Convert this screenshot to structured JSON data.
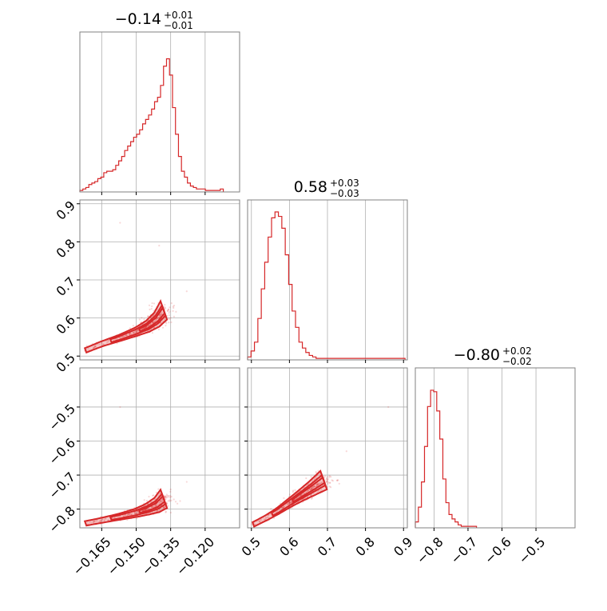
{
  "colors": {
    "series": "#d62728",
    "frame": "#808080",
    "grid": "#b0b0b0"
  },
  "titles": [
    {
      "value": "−0.14",
      "sup": "+0.01",
      "sub": "−0.01"
    },
    {
      "value": "0.58",
      "sup": "+0.03",
      "sub": "−0.03"
    },
    {
      "value": "−0.80",
      "sup": "+0.02",
      "sub": "−0.02"
    }
  ],
  "chart_data": {
    "type": "corner",
    "parameters": 3,
    "ranges": [
      [
        -0.1745,
        -0.105
      ],
      [
        0.49,
        0.91
      ],
      [
        -0.855,
        -0.385
      ]
    ],
    "ticks": [
      {
        "values": [
          -0.165,
          -0.15,
          -0.135,
          -0.12
        ],
        "labels": [
          "−0.165",
          "−0.150",
          "−0.135",
          "−0.120"
        ]
      },
      {
        "values": [
          0.5,
          0.6,
          0.7,
          0.8,
          0.9
        ],
        "labels": [
          "0.5",
          "0.6",
          "0.7",
          "0.8",
          "0.9"
        ]
      },
      {
        "values": [
          -0.8,
          -0.7,
          -0.6,
          -0.5
        ],
        "labels": [
          "−0.8",
          "−0.7",
          "−0.6",
          "−0.5"
        ]
      }
    ],
    "histograms": [
      {
        "bin_start": -0.1745,
        "bin_width": 0.0013,
        "heights": [
          0.01,
          0.02,
          0.03,
          0.05,
          0.06,
          0.07,
          0.09,
          0.1,
          0.13,
          0.14,
          0.14,
          0.15,
          0.18,
          0.21,
          0.24,
          0.28,
          0.31,
          0.34,
          0.37,
          0.39,
          0.42,
          0.46,
          0.49,
          0.52,
          0.56,
          0.61,
          0.64,
          0.72,
          0.85,
          0.9,
          0.79,
          0.57,
          0.39,
          0.24,
          0.14,
          0.1,
          0.06,
          0.04,
          0.03,
          0.02,
          0.02,
          0.02,
          0.01,
          0.01,
          0.01,
          0.01,
          0.01,
          0.02
        ]
      },
      {
        "bin_start": 0.49,
        "bin_width": 0.009,
        "heights": [
          0.02,
          0.06,
          0.12,
          0.28,
          0.48,
          0.66,
          0.83,
          0.96,
          1.0,
          0.97,
          0.89,
          0.71,
          0.51,
          0.33,
          0.22,
          0.12,
          0.08,
          0.05,
          0.03,
          0.02,
          0.01,
          0.01,
          0.01,
          0.01,
          0.01,
          0.01,
          0.01,
          0.01,
          0.01,
          0.01,
          0.01,
          0.01,
          0.01,
          0.01,
          0.01,
          0.01,
          0.01,
          0.01,
          0.01,
          0.01,
          0.01,
          0.01,
          0.01,
          0.01,
          0.01,
          0.01
        ]
      },
      {
        "bin_start": -0.855,
        "bin_width": 0.009,
        "heights": [
          0.04,
          0.14,
          0.31,
          0.55,
          0.82,
          0.93,
          0.92,
          0.79,
          0.6,
          0.33,
          0.17,
          0.09,
          0.06,
          0.04,
          0.02,
          0.01,
          0.01,
          0.01,
          0.01,
          0.01
        ]
      }
    ],
    "pairs": [
      {
        "row": 1,
        "col": 0,
        "ridge_x": [
          -0.172,
          -0.165,
          -0.157,
          -0.15,
          -0.145,
          -0.141,
          -0.138
        ],
        "ridge_y": [
          0.515,
          0.532,
          0.548,
          0.564,
          0.578,
          0.596,
          0.62
        ],
        "outliers": [
          [
            -0.157,
            0.85
          ],
          [
            -0.14,
            0.79
          ],
          [
            -0.128,
            0.67
          ]
        ]
      },
      {
        "row": 2,
        "col": 0,
        "ridge_x": [
          -0.172,
          -0.165,
          -0.157,
          -0.15,
          -0.145,
          -0.141,
          -0.138
        ],
        "ridge_y": [
          -0.842,
          -0.833,
          -0.822,
          -0.811,
          -0.8,
          -0.788,
          -0.77
        ],
        "outliers": [
          [
            -0.157,
            -0.5
          ],
          [
            -0.128,
            -0.72
          ]
        ]
      },
      {
        "row": 2,
        "col": 1,
        "ridge_x": [
          0.505,
          0.54,
          0.57,
          0.6,
          0.63,
          0.66,
          0.69
        ],
        "ridge_y": [
          -0.845,
          -0.825,
          -0.805,
          -0.782,
          -0.76,
          -0.738,
          -0.715
        ],
        "outliers": [
          [
            0.75,
            -0.63
          ],
          [
            0.86,
            -0.5
          ]
        ]
      }
    ]
  }
}
